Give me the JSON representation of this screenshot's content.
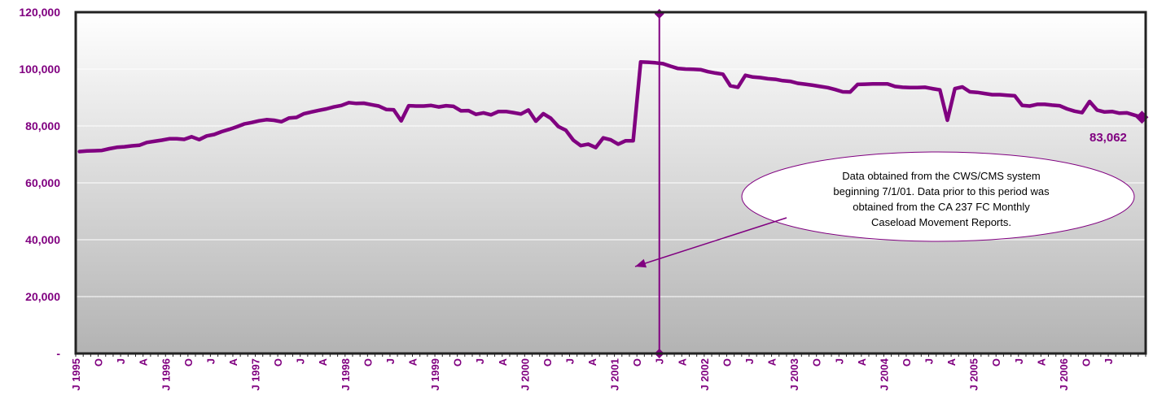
{
  "colors": {
    "accent": "#800080",
    "axis": "#222222",
    "grid": "#ffffff"
  },
  "chart_data": {
    "type": "line",
    "series": [
      {
        "values": [
          71000,
          71200,
          71300,
          71400,
          72000,
          72500,
          72700,
          73000,
          73200,
          74200,
          74600,
          75000,
          75500,
          75500,
          75300,
          76200,
          75200,
          76500,
          77000,
          78000,
          78800,
          79700,
          80700,
          81200,
          81800,
          82200,
          82000,
          81500,
          82800,
          83000,
          84300,
          84900,
          85500,
          86000,
          86700,
          87200,
          88200,
          87900,
          88000,
          87500,
          87000,
          85800,
          85700,
          81800,
          87100,
          87000,
          87000,
          87200,
          86700,
          87100,
          86900,
          85300,
          85400,
          84100,
          84600,
          83900,
          85100,
          85100,
          84700,
          84200,
          85600,
          81700,
          84300,
          82700,
          79800,
          78500,
          75000,
          73100,
          73600,
          72400,
          75800,
          75100,
          73600,
          74800,
          74800,
          102500,
          102400,
          102200,
          101900,
          101000,
          100200,
          100000,
          99900,
          99800,
          99100,
          98600,
          98200,
          94100,
          93600,
          97800,
          97200,
          97000,
          96600,
          96400,
          95900,
          95700,
          95000,
          94700,
          94300,
          93900,
          93500,
          92800,
          92000,
          91900,
          94600,
          94700,
          94800,
          94800,
          94800,
          93900,
          93600,
          93500,
          93500,
          93600,
          93100,
          92700,
          82000,
          93100,
          93700,
          92000,
          91800,
          91400,
          91000,
          91000,
          90800,
          90600,
          87200,
          87000,
          87600,
          87600,
          87300,
          87100,
          86000,
          85200,
          84700,
          88600,
          85600,
          84900,
          85100,
          84500,
          84600,
          83800,
          83062
        ]
      }
    ],
    "ylim": [
      0,
      120000
    ],
    "yticks": [
      0,
      20000,
      40000,
      60000,
      80000,
      100000,
      120000
    ],
    "ytick_labels": [
      "-",
      "20,000",
      "40,000",
      "60,000",
      "80,000",
      "100,000",
      "120,000"
    ],
    "x_start": "1995-01",
    "x_end": "2006-11",
    "x_tick_labels": [
      "J 1995",
      "O",
      "J",
      "A",
      "J 1996",
      "O",
      "J",
      "A",
      "J 1997",
      "O",
      "J",
      "A",
      "J 1998",
      "O",
      "J",
      "A",
      "J 1999",
      "O",
      "J",
      "A",
      "J 2000",
      "O",
      "J",
      "A",
      "J 2001",
      "O",
      "J",
      "A",
      "J 2002",
      "O",
      "J",
      "A",
      "J 2003",
      "O",
      "J",
      "A",
      "J 2004",
      "O",
      "J",
      "A",
      "J 2005",
      "O",
      "J",
      "A",
      "J 2006",
      "O",
      "J"
    ],
    "grid": true,
    "reference_line_x": "2001-07",
    "end_label": "83,062",
    "annotation": {
      "lines": [
        "Data obtained from the CWS/CMS system",
        "beginning 7/1/01.  Data prior to this period was",
        "obtained from the CA 237 FC Monthly",
        "Caseload Movement Reports."
      ]
    }
  }
}
